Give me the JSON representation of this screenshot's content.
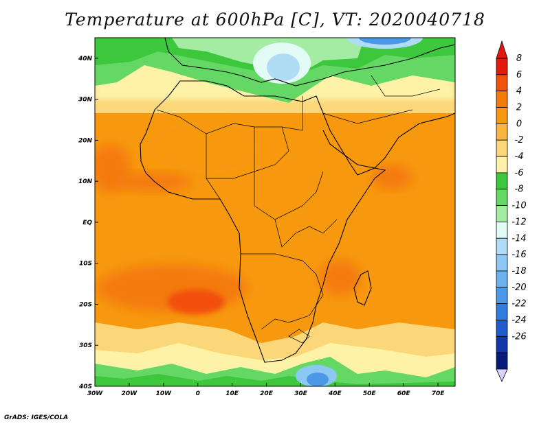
{
  "title": "Temperature at 600hPa [C], VT: 2020040718",
  "credit": "GrADS: IGES/COLA",
  "axes": {
    "lat_labels": [
      "40N",
      "30N",
      "20N",
      "10N",
      "EQ",
      "10S",
      "20S",
      "30S",
      "40S"
    ],
    "lat_values": [
      40,
      30,
      20,
      10,
      0,
      -10,
      -20,
      -30,
      -40
    ],
    "lon_labels": [
      "30W",
      "20W",
      "10W",
      "0",
      "10E",
      "20E",
      "30E",
      "40E",
      "50E",
      "60E",
      "70E"
    ],
    "lon_values": [
      -30,
      -20,
      -10,
      0,
      10,
      20,
      30,
      40,
      50,
      60,
      70
    ],
    "lon_range": [
      -30,
      75
    ],
    "lat_range": [
      -40,
      45
    ]
  },
  "colorbar": {
    "labels": [
      "8",
      "6",
      "4",
      "2",
      "0",
      "-2",
      "-4",
      "-6",
      "-8",
      "-10",
      "-12",
      "-14",
      "-16",
      "-18",
      "-20",
      "-22",
      "-24",
      "-26"
    ],
    "colors_top_to_bottom": [
      "#e31a0b",
      "#f2500c",
      "#f47a0c",
      "#f7990f",
      "#f9b541",
      "#fcd77a",
      "#fdf2a6",
      "#3dc73d",
      "#64d764",
      "#a4eca4",
      "#e3fbf5",
      "#b0dcf6",
      "#8cc8f3",
      "#6ab2ee",
      "#4a98e6",
      "#2f7dde",
      "#1f5ccd",
      "#1237a8",
      "#0a1a7a"
    ],
    "below_color": "#d8d4ff"
  }
}
